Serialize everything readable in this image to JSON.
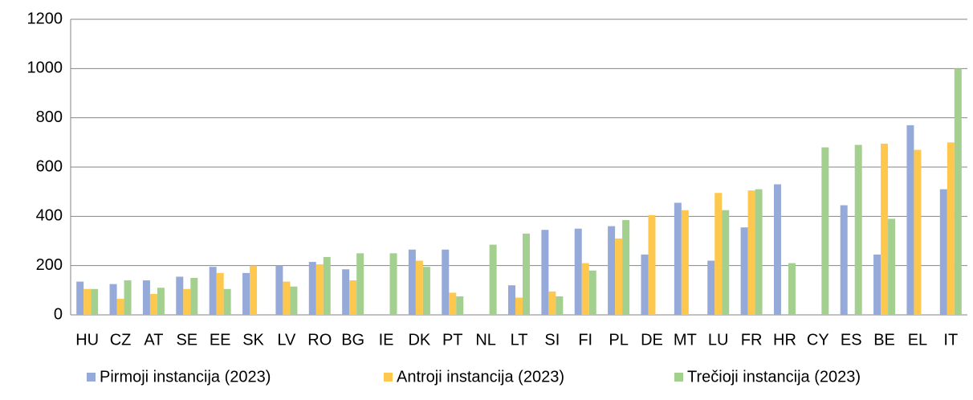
{
  "chart_data": {
    "type": "bar",
    "categories": [
      "HU",
      "CZ",
      "AT",
      "SE",
      "EE",
      "SK",
      "LV",
      "RO",
      "BG",
      "IE",
      "DK",
      "PT",
      "NL",
      "LT",
      "SI",
      "FI",
      "PL",
      "DE",
      "MT",
      "LU",
      "FR",
      "HR",
      "CY",
      "ES",
      "BE",
      "EL",
      "IT"
    ],
    "series": [
      {
        "name": "Pirmoji instancija (2023)",
        "color": "#95aad9",
        "values": [
          135,
          125,
          140,
          155,
          195,
          170,
          200,
          215,
          185,
          null,
          265,
          265,
          null,
          120,
          345,
          350,
          360,
          245,
          455,
          220,
          355,
          530,
          null,
          445,
          245,
          770,
          510
        ]
      },
      {
        "name": "Antroji instancija (2023)",
        "color": "#fdc84d",
        "values": [
          105,
          65,
          85,
          105,
          170,
          200,
          135,
          205,
          140,
          null,
          220,
          90,
          null,
          70,
          95,
          210,
          310,
          405,
          425,
          495,
          505,
          null,
          null,
          null,
          695,
          670,
          700
        ]
      },
      {
        "name": "Trečioji instancija (2023)",
        "color": "#a3d08f",
        "values": [
          105,
          140,
          110,
          150,
          105,
          null,
          115,
          235,
          250,
          250,
          195,
          75,
          285,
          330,
          75,
          180,
          385,
          null,
          null,
          425,
          510,
          210,
          680,
          690,
          390,
          null,
          1000
        ]
      }
    ],
    "ylim": [
      0,
      1200
    ],
    "yticks": [
      0,
      200,
      400,
      600,
      800,
      1000,
      1200
    ],
    "grid": true
  }
}
